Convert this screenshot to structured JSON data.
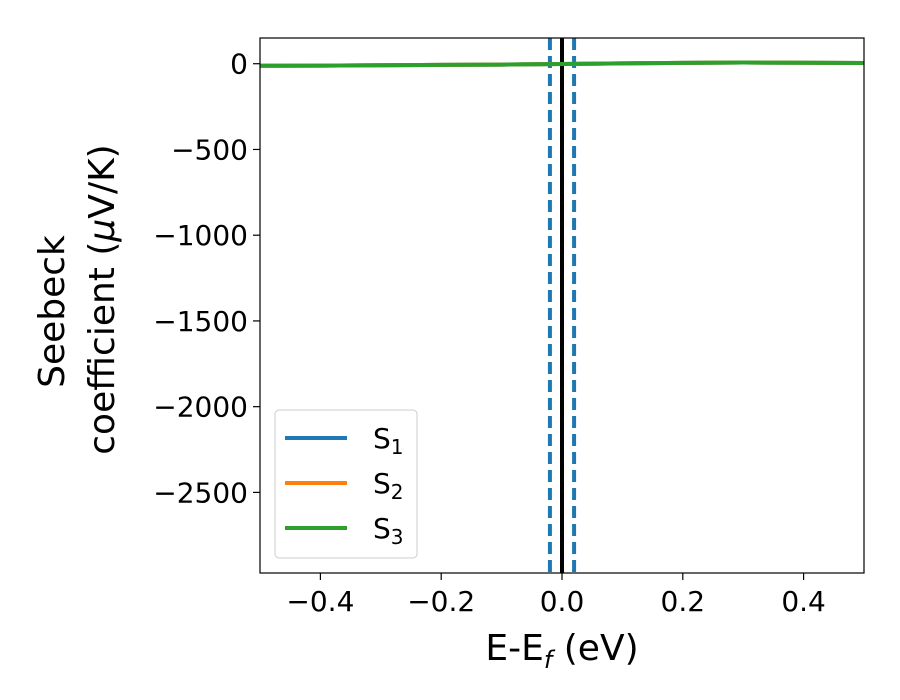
{
  "chart_data": {
    "type": "line",
    "xlabel": {
      "main": "E-E",
      "sub": "f",
      "unit": " (eV)"
    },
    "ylabel": {
      "line1": "Seebeck",
      "line2": "coefficient  (",
      "mu": "μ",
      "unit": "V/K)"
    },
    "xlim": [
      -0.5,
      0.5
    ],
    "ylim": [
      -2970,
      150
    ],
    "xticks": [
      -0.4,
      -0.2,
      0.0,
      0.2,
      0.4
    ],
    "xtick_labels": [
      "−0.4",
      "−0.2",
      "0.0",
      "0.2",
      "0.4"
    ],
    "yticks": [
      0,
      -500,
      -1000,
      -1500,
      -2000,
      -2500
    ],
    "ytick_labels": [
      "0",
      "−500",
      "−1000",
      "−1500",
      "−2000",
      "−2500"
    ],
    "grid": false,
    "legend_placement": "lower-left",
    "series": [
      {
        "name": "S1",
        "label_main": "S",
        "label_sub": "1",
        "color": "#1f77b4",
        "x": [
          -0.5,
          -0.4,
          -0.3,
          -0.2,
          -0.1,
          0.0,
          0.1,
          0.2,
          0.3,
          0.4,
          0.5
        ],
        "y": [
          -12,
          -11,
          -9,
          -7,
          -5,
          -2,
          2,
          5,
          7,
          6,
          4
        ]
      },
      {
        "name": "S2",
        "label_main": "S",
        "label_sub": "2",
        "color": "#ff7f0e",
        "x": [
          -0.5,
          -0.4,
          -0.3,
          -0.2,
          -0.1,
          0.0,
          0.1,
          0.2,
          0.3,
          0.4,
          0.5
        ],
        "y": [
          -12,
          -11,
          -9,
          -7,
          -5,
          -2,
          2,
          5,
          7,
          6,
          4
        ]
      },
      {
        "name": "S3",
        "label_main": "S",
        "label_sub": "3",
        "color": "#2ca02c",
        "x": [
          -0.5,
          -0.4,
          -0.3,
          -0.2,
          -0.1,
          0.0,
          0.1,
          0.2,
          0.3,
          0.4,
          0.5
        ],
        "y": [
          -12,
          -11,
          -9,
          -7,
          -5,
          -2,
          2,
          5,
          7,
          6,
          4
        ]
      }
    ],
    "vertical_lines": [
      {
        "x": 0.0,
        "color": "#000000",
        "style": "solid"
      },
      {
        "x": -0.02,
        "color": "#1f77b4",
        "style": "dashed"
      },
      {
        "x": 0.02,
        "color": "#1f77b4",
        "style": "dashed"
      }
    ]
  }
}
